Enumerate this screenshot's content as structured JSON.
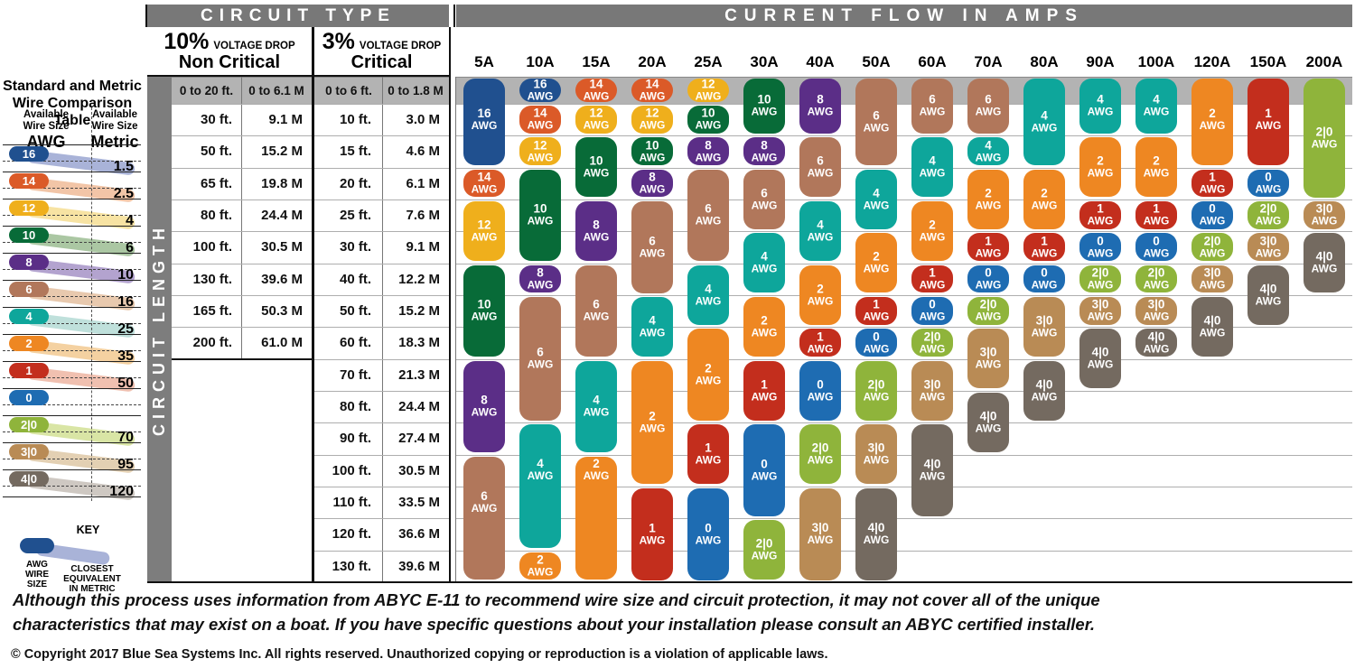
{
  "header": {
    "circuit_type": "CIRCUIT TYPE",
    "current_flow": "CURRENT FLOW IN AMPS"
  },
  "voltage_drop": {
    "non_critical": {
      "pct": "10%",
      "label": "VOLTAGE DROP",
      "name": "Non Critical"
    },
    "critical": {
      "pct": "3%",
      "label": "VOLTAGE DROP",
      "name": "Critical"
    }
  },
  "circuit_length_label": "CIRCUIT LENGTH",
  "sidebar": {
    "title": "Standard and Metric\nWire Comparison Table",
    "col_awg_header": "Available\nWire Size",
    "col_awg_unit": "AWG",
    "col_metric_header": "Available\nWire Size",
    "col_metric_unit": "Metric",
    "rows": [
      {
        "awg": "16",
        "metric": "1.5",
        "band": "#a9b3d8"
      },
      {
        "awg": "14",
        "metric": "2.5",
        "band": "#f2c5a7"
      },
      {
        "awg": "12",
        "metric": "4",
        "band": "#f7e3a3"
      },
      {
        "awg": "10",
        "metric": "6",
        "band": "#abc7a3"
      },
      {
        "awg": "8",
        "metric": "10",
        "band": "#b3a3cf"
      },
      {
        "awg": "6",
        "metric": "16",
        "band": "#e8c9ae"
      },
      {
        "awg": "4",
        "metric": "25",
        "band": "#bfe0db"
      },
      {
        "awg": "2",
        "metric": "35",
        "band": "#f4d1a1"
      },
      {
        "awg": "1",
        "metric": "50",
        "band": "#f0c0b0"
      },
      {
        "awg": "0",
        "metric": null,
        "band": null
      },
      {
        "awg": "2|0",
        "metric": "70",
        "band": "#d9e5a5"
      },
      {
        "awg": "3|0",
        "metric": "95",
        "band": "#e3d0b3"
      },
      {
        "awg": "4|0",
        "metric": "120",
        "band": "#cec8c2"
      }
    ],
    "key": {
      "title": "KEY",
      "awg_label": "AWG\nWIRE\nSIZE",
      "metric_label": "CLOSEST\nEQUIVALENT\nIN METRIC",
      "pill_color": "#20508f",
      "band_color": "#a9b3d8"
    }
  },
  "chart_data": {
    "type": "table",
    "columns_axis": "Current Flow in Amps",
    "rows_axis": "Circuit Length",
    "awg_unit": "AWG",
    "wire_colors": {
      "16": "#20508f",
      "14": "#db5a28",
      "12": "#efaf1c",
      "10": "#086b38",
      "8": "#5b2e87",
      "6": "#b1775b",
      "4": "#0ea69b",
      "2": "#ee8722",
      "1": "#c32e1d",
      "0": "#1e6cb2",
      "2|0": "#8fb43b",
      "3|0": "#b98b55",
      "4|0": "#746a60"
    },
    "length_rows": [
      {
        "nc_ft": "0 to 20 ft.",
        "nc_m": "0 to 6.1 M",
        "c_ft": "0 to 6 ft.",
        "c_m": "0 to 1.8 M"
      },
      {
        "nc_ft": "30 ft.",
        "nc_m": "9.1 M",
        "c_ft": "10 ft.",
        "c_m": "3.0 M"
      },
      {
        "nc_ft": "50 ft.",
        "nc_m": "15.2 M",
        "c_ft": "15 ft.",
        "c_m": "4.6 M"
      },
      {
        "nc_ft": "65 ft.",
        "nc_m": "19.8 M",
        "c_ft": "20 ft.",
        "c_m": "6.1 M"
      },
      {
        "nc_ft": "80 ft.",
        "nc_m": "24.4 M",
        "c_ft": "25 ft.",
        "c_m": "7.6 M"
      },
      {
        "nc_ft": "100 ft.",
        "nc_m": "30.5 M",
        "c_ft": "30 ft.",
        "c_m": "9.1 M"
      },
      {
        "nc_ft": "130 ft.",
        "nc_m": "39.6 M",
        "c_ft": "40 ft.",
        "c_m": "12.2 M"
      },
      {
        "nc_ft": "165 ft.",
        "nc_m": "50.3 M",
        "c_ft": "50 ft.",
        "c_m": "15.2 M"
      },
      {
        "nc_ft": "200 ft.",
        "nc_m": "61.0 M",
        "c_ft": "60 ft.",
        "c_m": "18.3 M"
      },
      {
        "nc_ft": null,
        "nc_m": null,
        "c_ft": "70 ft.",
        "c_m": "21.3 M"
      },
      {
        "nc_ft": null,
        "nc_m": null,
        "c_ft": "80 ft.",
        "c_m": "24.4 M"
      },
      {
        "nc_ft": null,
        "nc_m": null,
        "c_ft": "90 ft.",
        "c_m": "27.4 M"
      },
      {
        "nc_ft": null,
        "nc_m": null,
        "c_ft": "100 ft.",
        "c_m": "30.5 M"
      },
      {
        "nc_ft": null,
        "nc_m": null,
        "c_ft": "110 ft.",
        "c_m": "33.5 M"
      },
      {
        "nc_ft": null,
        "nc_m": null,
        "c_ft": "120 ft.",
        "c_m": "36.6 M"
      },
      {
        "nc_ft": null,
        "nc_m": null,
        "c_ft": "130 ft.",
        "c_m": "39.6 M"
      }
    ],
    "amp_columns": [
      {
        "amp": "5A",
        "segments": [
          {
            "awg": "16",
            "from": 1,
            "to": 3,
            "lr": 2
          },
          {
            "awg": "14",
            "from": 4,
            "to": 4
          },
          {
            "awg": "12",
            "from": 5,
            "to": 6
          },
          {
            "awg": "10",
            "from": 7,
            "to": 9
          },
          {
            "awg": "8",
            "from": 10,
            "to": 12
          },
          {
            "awg": "6",
            "from": 13,
            "to": 16,
            "lr": 14
          }
        ]
      },
      {
        "amp": "10A",
        "segments": [
          {
            "awg": "16",
            "from": 1,
            "to": 1
          },
          {
            "awg": "14",
            "from": 2,
            "to": 2
          },
          {
            "awg": "12",
            "from": 3,
            "to": 3
          },
          {
            "awg": "10",
            "from": 4,
            "to": 6
          },
          {
            "awg": "8",
            "from": 7,
            "to": 7
          },
          {
            "awg": "6",
            "from": 8,
            "to": 11
          },
          {
            "awg": "4",
            "from": 12,
            "to": 15,
            "lr": 13
          },
          {
            "awg": "2",
            "from": 16,
            "to": 16
          }
        ]
      },
      {
        "amp": "15A",
        "segments": [
          {
            "awg": "14",
            "from": 1,
            "to": 1
          },
          {
            "awg": "12",
            "from": 2,
            "to": 2
          },
          {
            "awg": "10",
            "from": 3,
            "to": 4
          },
          {
            "awg": "8",
            "from": 5,
            "to": 6
          },
          {
            "awg": "6",
            "from": 7,
            "to": 9
          },
          {
            "awg": "4",
            "from": 10,
            "to": 12
          },
          {
            "awg": "2",
            "from": 13,
            "to": 16,
            "lr": 13
          }
        ]
      },
      {
        "amp": "20A",
        "segments": [
          {
            "awg": "14",
            "from": 1,
            "to": 1
          },
          {
            "awg": "12",
            "from": 2,
            "to": 2
          },
          {
            "awg": "10",
            "from": 3,
            "to": 3
          },
          {
            "awg": "8",
            "from": 4,
            "to": 4
          },
          {
            "awg": "6",
            "from": 5,
            "to": 7
          },
          {
            "awg": "4",
            "from": 8,
            "to": 9
          },
          {
            "awg": "2",
            "from": 10,
            "to": 13
          },
          {
            "awg": "1",
            "from": 14,
            "to": 16
          }
        ]
      },
      {
        "amp": "25A",
        "segments": [
          {
            "awg": "12",
            "from": 1,
            "to": 1
          },
          {
            "awg": "10",
            "from": 2,
            "to": 2
          },
          {
            "awg": "8",
            "from": 3,
            "to": 3
          },
          {
            "awg": "6",
            "from": 4,
            "to": 6
          },
          {
            "awg": "4",
            "from": 7,
            "to": 8
          },
          {
            "awg": "2",
            "from": 9,
            "to": 11
          },
          {
            "awg": "1",
            "from": 12,
            "to": 13
          },
          {
            "awg": "0",
            "from": 14,
            "to": 16
          }
        ]
      },
      {
        "amp": "30A",
        "segments": [
          {
            "awg": "10",
            "from": 1,
            "to": 2
          },
          {
            "awg": "8",
            "from": 3,
            "to": 3
          },
          {
            "awg": "6",
            "from": 4,
            "to": 5
          },
          {
            "awg": "4",
            "from": 6,
            "to": 7
          },
          {
            "awg": "2",
            "from": 8,
            "to": 9
          },
          {
            "awg": "1",
            "from": 10,
            "to": 11
          },
          {
            "awg": "0",
            "from": 12,
            "to": 14
          },
          {
            "awg": "2|0",
            "from": 15,
            "to": 16
          }
        ]
      },
      {
        "amp": "40A",
        "segments": [
          {
            "awg": "8",
            "from": 1,
            "to": 2
          },
          {
            "awg": "6",
            "from": 3,
            "to": 4
          },
          {
            "awg": "4",
            "from": 5,
            "to": 6
          },
          {
            "awg": "2",
            "from": 7,
            "to": 8
          },
          {
            "awg": "1",
            "from": 9,
            "to": 9
          },
          {
            "awg": "0",
            "from": 10,
            "to": 11
          },
          {
            "awg": "2|0",
            "from": 12,
            "to": 13
          },
          {
            "awg": "3|0",
            "from": 14,
            "to": 16,
            "lr": 15
          }
        ]
      },
      {
        "amp": "50A",
        "segments": [
          {
            "awg": "6",
            "from": 1,
            "to": 3
          },
          {
            "awg": "4",
            "from": 4,
            "to": 5
          },
          {
            "awg": "2",
            "from": 6,
            "to": 7
          },
          {
            "awg": "1",
            "from": 8,
            "to": 8
          },
          {
            "awg": "0",
            "from": 9,
            "to": 9
          },
          {
            "awg": "2|0",
            "from": 10,
            "to": 11
          },
          {
            "awg": "3|0",
            "from": 12,
            "to": 13
          },
          {
            "awg": "4|0",
            "from": 14,
            "to": 16,
            "lr": 15
          }
        ]
      },
      {
        "amp": "60A",
        "segments": [
          {
            "awg": "6",
            "from": 1,
            "to": 2
          },
          {
            "awg": "4",
            "from": 3,
            "to": 4
          },
          {
            "awg": "2",
            "from": 5,
            "to": 6
          },
          {
            "awg": "1",
            "from": 7,
            "to": 7
          },
          {
            "awg": "0",
            "from": 8,
            "to": 8
          },
          {
            "awg": "2|0",
            "from": 9,
            "to": 9
          },
          {
            "awg": "3|0",
            "from": 10,
            "to": 11
          },
          {
            "awg": "4|0",
            "from": 12,
            "to": 14
          }
        ]
      },
      {
        "amp": "70A",
        "segments": [
          {
            "awg": "6",
            "from": 1,
            "to": 2
          },
          {
            "awg": "4",
            "from": 3,
            "to": 3
          },
          {
            "awg": "2",
            "from": 4,
            "to": 5
          },
          {
            "awg": "1",
            "from": 6,
            "to": 6
          },
          {
            "awg": "0",
            "from": 7,
            "to": 7
          },
          {
            "awg": "2|0",
            "from": 8,
            "to": 8
          },
          {
            "awg": "3|0",
            "from": 9,
            "to": 10
          },
          {
            "awg": "4|0",
            "from": 11,
            "to": 12
          }
        ]
      },
      {
        "amp": "80A",
        "segments": [
          {
            "awg": "4",
            "from": 1,
            "to": 3
          },
          {
            "awg": "2",
            "from": 4,
            "to": 5
          },
          {
            "awg": "1",
            "from": 6,
            "to": 6
          },
          {
            "awg": "0",
            "from": 7,
            "to": 7
          },
          {
            "awg": "3|0",
            "from": 8,
            "to": 9
          },
          {
            "awg": "4|0",
            "from": 10,
            "to": 11
          }
        ]
      },
      {
        "amp": "90A",
        "segments": [
          {
            "awg": "4",
            "from": 1,
            "to": 2
          },
          {
            "awg": "2",
            "from": 3,
            "to": 4
          },
          {
            "awg": "1",
            "from": 5,
            "to": 5
          },
          {
            "awg": "0",
            "from": 6,
            "to": 6
          },
          {
            "awg": "2|0",
            "from": 7,
            "to": 7
          },
          {
            "awg": "3|0",
            "from": 8,
            "to": 8
          },
          {
            "awg": "4|0",
            "from": 9,
            "to": 10
          }
        ]
      },
      {
        "amp": "100A",
        "segments": [
          {
            "awg": "4",
            "from": 1,
            "to": 2
          },
          {
            "awg": "2",
            "from": 3,
            "to": 4
          },
          {
            "awg": "1",
            "from": 5,
            "to": 5
          },
          {
            "awg": "0",
            "from": 6,
            "to": 6
          },
          {
            "awg": "2|0",
            "from": 7,
            "to": 7
          },
          {
            "awg": "3|0",
            "from": 8,
            "to": 8
          },
          {
            "awg": "4|0",
            "from": 9,
            "to": 9
          }
        ]
      },
      {
        "amp": "120A",
        "segments": [
          {
            "awg": "2",
            "from": 1,
            "to": 3,
            "lr": 2
          },
          {
            "awg": "1",
            "from": 4,
            "to": 4
          },
          {
            "awg": "0",
            "from": 5,
            "to": 5
          },
          {
            "awg": "2|0",
            "from": 6,
            "to": 6
          },
          {
            "awg": "3|0",
            "from": 7,
            "to": 7
          },
          {
            "awg": "4|0",
            "from": 8,
            "to": 9
          }
        ]
      },
      {
        "amp": "150A",
        "segments": [
          {
            "awg": "1",
            "from": 1,
            "to": 3,
            "lr": 2
          },
          {
            "awg": "0",
            "from": 4,
            "to": 4
          },
          {
            "awg": "2|0",
            "from": 5,
            "to": 5
          },
          {
            "awg": "3|0",
            "from": 6,
            "to": 6
          },
          {
            "awg": "4|0",
            "from": 7,
            "to": 8
          }
        ]
      },
      {
        "amp": "200A",
        "segments": [
          {
            "awg": "2|0",
            "from": 1,
            "to": 4
          },
          {
            "awg": "3|0",
            "from": 5,
            "to": 5
          },
          {
            "awg": "4|0",
            "from": 6,
            "to": 7
          }
        ]
      }
    ]
  },
  "footer": {
    "disclaimer1": "Although this process uses information from ABYC E-11 to recommend wire size and circuit protection, it may not cover all of the unique",
    "disclaimer2": "characteristics that may exist on a boat. If you have specific questions about your installation please consult an ABYC certified installer.",
    "copyright": "© Copyright 2017 Blue Sea Systems Inc. All rights reserved. Unauthorized copying or reproduction is a violation of applicable laws."
  },
  "colors": {
    "header_bar": "#787878",
    "gray_row": "#b3b3b3",
    "circuit_length_bar": "#7d7d7d"
  }
}
